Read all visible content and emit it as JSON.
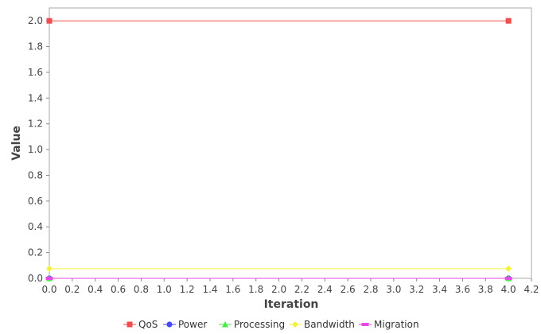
{
  "chart_data": {
    "type": "line",
    "xlabel": "Iteration",
    "ylabel": "Value",
    "xlim": [
      0,
      4.2
    ],
    "ylim": [
      0,
      2.1
    ],
    "x_ticks": [
      "0.0",
      "0.2",
      "0.4",
      "0.6",
      "0.8",
      "1.0",
      "1.2",
      "1.4",
      "1.6",
      "1.8",
      "2.0",
      "2.2",
      "2.4",
      "2.6",
      "2.8",
      "3.0",
      "3.2",
      "3.4",
      "3.6",
      "3.8",
      "4.0",
      "4.2"
    ],
    "y_ticks": [
      "0.0",
      "0.2",
      "0.4",
      "0.6",
      "0.8",
      "1.0",
      "1.2",
      "1.4",
      "1.6",
      "1.8",
      "2.0"
    ],
    "grid": false,
    "legend_position": "bottom",
    "series": [
      {
        "name": "QoS",
        "color": "#f04e4e",
        "marker": "square",
        "x": [
          0,
          4
        ],
        "y": [
          2.0,
          2.0
        ]
      },
      {
        "name": "Power",
        "color": "#4a4af0",
        "marker": "circle",
        "x": [
          0,
          4
        ],
        "y": [
          0.0,
          0.0
        ]
      },
      {
        "name": "Processing",
        "color": "#44ee44",
        "marker": "triangle",
        "x": [
          0,
          4
        ],
        "y": [
          0.0,
          0.0
        ]
      },
      {
        "name": "Bandwidth",
        "color": "#f2f23a",
        "marker": "diamond",
        "x": [
          0,
          4
        ],
        "y": [
          0.075,
          0.075
        ]
      },
      {
        "name": "Migration",
        "color": "#e64ae6",
        "marker": "rect",
        "x": [
          0,
          4
        ],
        "y": [
          0.0,
          0.0
        ]
      }
    ]
  }
}
